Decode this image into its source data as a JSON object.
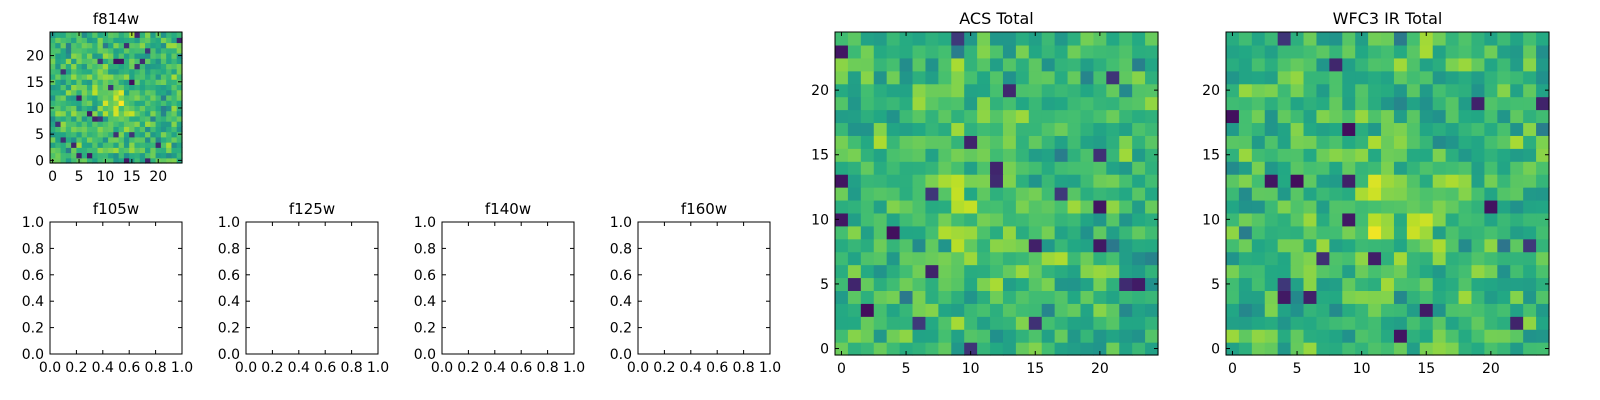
{
  "chart_data": [
    {
      "type": "heatmap",
      "title": "f814w",
      "xlim": [
        -0.5,
        24.5
      ],
      "ylim": [
        -0.5,
        24.5
      ],
      "xticks": [
        0,
        5,
        10,
        15,
        20
      ],
      "yticks": [
        0,
        5,
        10,
        15,
        20
      ],
      "grid": "25x25",
      "colormap": "viridis"
    },
    {
      "type": "heatmap",
      "title": "f105w",
      "empty": true,
      "xlim": [
        0.0,
        1.0
      ],
      "ylim": [
        0.0,
        1.0
      ],
      "xticks": [
        "0.0",
        "0.2",
        "0.4",
        "0.6",
        "0.8",
        "1.0"
      ],
      "yticks": [
        "0.0",
        "0.2",
        "0.4",
        "0.6",
        "0.8",
        "1.0"
      ]
    },
    {
      "type": "heatmap",
      "title": "f125w",
      "empty": true,
      "xlim": [
        0.0,
        1.0
      ],
      "ylim": [
        0.0,
        1.0
      ],
      "xticks": [
        "0.0",
        "0.2",
        "0.4",
        "0.6",
        "0.8",
        "1.0"
      ],
      "yticks": [
        "0.0",
        "0.2",
        "0.4",
        "0.6",
        "0.8",
        "1.0"
      ]
    },
    {
      "type": "heatmap",
      "title": "f140w",
      "empty": true,
      "xlim": [
        0.0,
        1.0
      ],
      "ylim": [
        0.0,
        1.0
      ],
      "xticks": [
        "0.0",
        "0.2",
        "0.4",
        "0.6",
        "0.8",
        "1.0"
      ],
      "yticks": [
        "0.0",
        "0.2",
        "0.4",
        "0.6",
        "0.8",
        "1.0"
      ]
    },
    {
      "type": "heatmap",
      "title": "f160w",
      "empty": true,
      "xlim": [
        0.0,
        1.0
      ],
      "ylim": [
        0.0,
        1.0
      ],
      "xticks": [
        "0.0",
        "0.2",
        "0.4",
        "0.6",
        "0.8",
        "1.0"
      ],
      "yticks": [
        "0.0",
        "0.2",
        "0.4",
        "0.6",
        "0.8",
        "1.0"
      ]
    },
    {
      "type": "heatmap",
      "title": "ACS Total",
      "xlim": [
        -0.5,
        24.5
      ],
      "ylim": [
        -0.5,
        24.5
      ],
      "xticks": [
        0,
        5,
        10,
        15,
        20
      ],
      "yticks": [
        0,
        5,
        10,
        15,
        20
      ],
      "grid": "25x25",
      "colormap": "viridis"
    },
    {
      "type": "heatmap",
      "title": "WFC3 IR Total",
      "xlim": [
        -0.5,
        24.5
      ],
      "ylim": [
        -0.5,
        24.5
      ],
      "xticks": [
        0,
        5,
        10,
        15,
        20
      ],
      "yticks": [
        0,
        5,
        10,
        15,
        20
      ],
      "grid": "25x25",
      "colormap": "viridis"
    }
  ]
}
